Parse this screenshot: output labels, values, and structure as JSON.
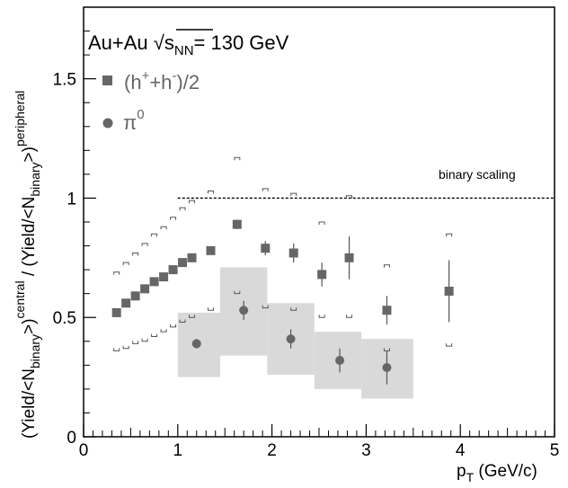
{
  "chart_data": {
    "type": "scatter",
    "title": "",
    "xlabel": "p_T (GeV/c)",
    "xlabel_main": "p",
    "xlabel_sub": "T",
    "xlabel_unit": " (GeV/c)",
    "ylabel": "(Yield/<N_binary>)^central / (Yield/<N_binary>)^peripheral",
    "ylabel_parts": {
      "p1": "(Yield/<N",
      "p1_sub": "binary",
      "p1_end": ">)",
      "p1_sup": "central",
      "sep": " / ",
      "p2": "(Yield/<N",
      "p2_sub": "binary",
      "p2_end": ">)",
      "p2_sup": "peripheral"
    },
    "xlim": [
      0,
      5
    ],
    "ylim": [
      0,
      1.8
    ],
    "xticks": [
      0,
      1,
      2,
      3,
      4,
      5
    ],
    "xtick_labels": [
      "0",
      "1",
      "2",
      "3",
      "4",
      "5"
    ],
    "yticks": [
      0,
      0.5,
      1,
      1.5
    ],
    "ytick_labels": [
      "0",
      "0.5",
      "1",
      "1.5"
    ],
    "grid": false,
    "legend_position": "top-left",
    "annotation": {
      "system_a": "Au+Au ",
      "system_sqrt": "√",
      "system_s": "s",
      "system_sub": "NN",
      "system_b": "= 130 GeV",
      "binary_label": "binary scaling",
      "binary_y": 1.0,
      "binary_x": [
        1.0,
        5.0
      ]
    },
    "series": [
      {
        "name": "(h⁺+h⁻)/2",
        "name_parts": {
          "a": "(h",
          "sup1": "+",
          "b": "+h",
          "sup2": "-",
          "c": ")/2"
        },
        "marker": "square",
        "color": "#666666",
        "x": [
          0.35,
          0.45,
          0.55,
          0.65,
          0.75,
          0.85,
          0.95,
          1.05,
          1.15,
          1.35,
          1.63,
          1.93,
          2.23,
          2.53,
          2.82,
          3.22,
          3.88
        ],
        "y": [
          0.52,
          0.56,
          0.59,
          0.62,
          0.65,
          0.67,
          0.7,
          0.73,
          0.75,
          0.78,
          0.89,
          0.79,
          0.77,
          0.68,
          0.75,
          0.53,
          0.61
        ],
        "yerr": [
          0.01,
          0.01,
          0.01,
          0.01,
          0.01,
          0.01,
          0.01,
          0.01,
          0.01,
          0.01,
          0.02,
          0.03,
          0.04,
          0.05,
          0.09,
          0.06,
          0.13
        ],
        "sys_low": [
          0.36,
          0.37,
          0.39,
          0.4,
          0.42,
          0.44,
          0.46,
          0.48,
          0.5,
          0.53,
          0.6,
          0.54,
          0.53,
          0.5,
          0.5,
          0.36,
          0.38
        ],
        "sys_high": [
          0.69,
          0.73,
          0.77,
          0.81,
          0.85,
          0.88,
          0.92,
          0.96,
          0.99,
          1.03,
          1.17,
          1.04,
          1.02,
          0.9,
          1.01,
          0.72,
          0.85
        ]
      },
      {
        "name": "π⁰",
        "name_parts": {
          "a": "π",
          "sup1": "0"
        },
        "marker": "circle",
        "color": "#666666",
        "x": [
          1.2,
          1.7,
          2.2,
          2.72,
          3.22
        ],
        "y": [
          0.39,
          0.53,
          0.41,
          0.32,
          0.29
        ],
        "yerr": [
          0.02,
          0.04,
          0.04,
          0.05,
          0.07
        ],
        "band_x": [
          [
            1.0,
            1.45
          ],
          [
            1.45,
            1.95
          ],
          [
            1.95,
            2.45
          ],
          [
            2.45,
            2.95
          ],
          [
            2.95,
            3.5
          ]
        ],
        "band_y": [
          [
            0.25,
            0.52
          ],
          [
            0.34,
            0.71
          ],
          [
            0.26,
            0.56
          ],
          [
            0.2,
            0.44
          ],
          [
            0.16,
            0.41
          ]
        ]
      }
    ]
  }
}
